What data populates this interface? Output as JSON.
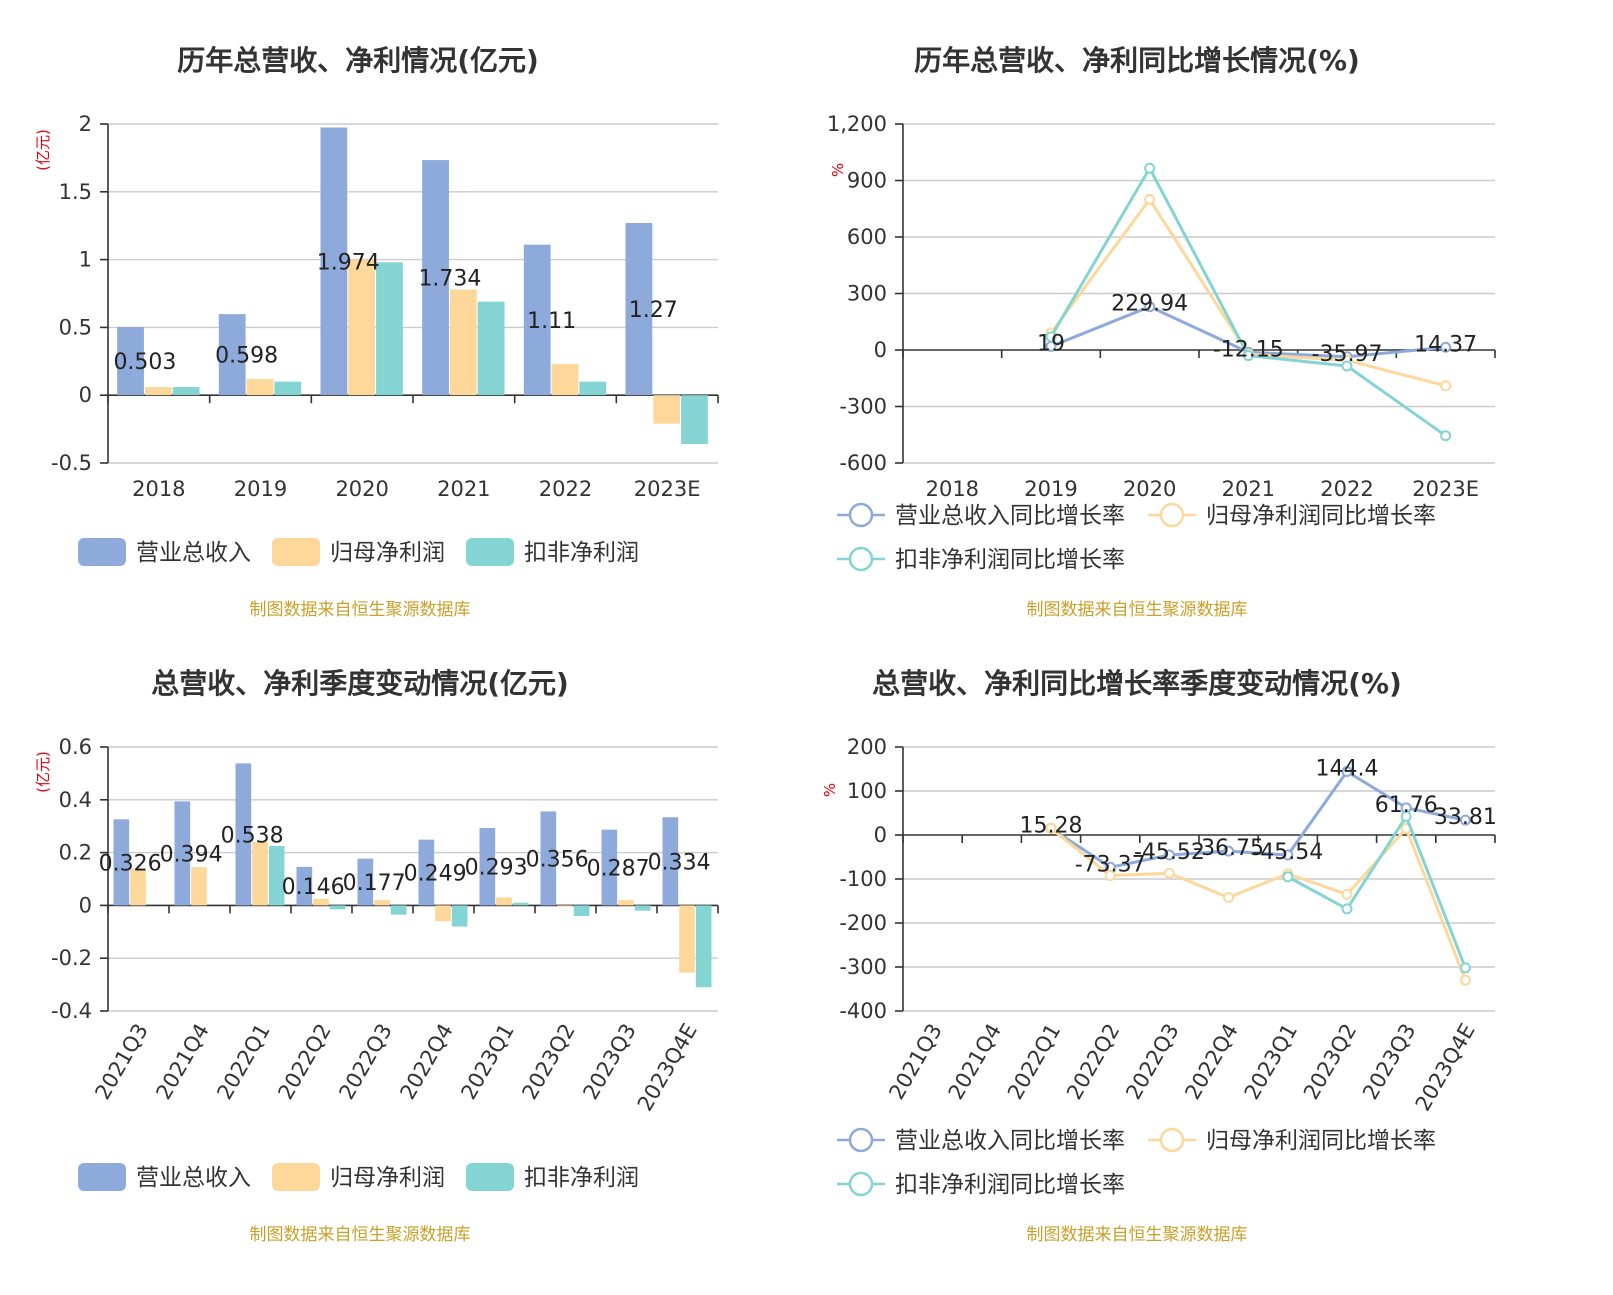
{
  "colors": {
    "revenue": "#8eaadb",
    "net_profit": "#fdd89a",
    "deducted_profit": "#84d4d4",
    "title": "#333333",
    "unit": "#e0000f",
    "source": "#c8a02a"
  },
  "source_note": "制图数据来自恒生聚源数据库",
  "chart_data": [
    {
      "id": "annual_amount",
      "type": "bar",
      "title": "历年总营收、净利情况(亿元)",
      "unit_label": "(亿元)",
      "categories": [
        "2018",
        "2019",
        "2020",
        "2021",
        "2022",
        "2023E"
      ],
      "ylim": [
        -0.5,
        2
      ],
      "yticks": [
        2,
        1.5,
        1,
        0.5,
        0,
        -0.5
      ],
      "ytick_labels": [
        "2",
        "1.5",
        "1",
        "0.5",
        "0",
        "-0.5"
      ],
      "grid": true,
      "legend_position": "bottom",
      "series": [
        {
          "name": "营业总收入",
          "color_key": "revenue",
          "values": [
            0.503,
            0.598,
            1.974,
            1.734,
            1.11,
            1.27
          ]
        },
        {
          "name": "归母净利润",
          "color_key": "net_profit",
          "values": [
            0.06,
            0.12,
            1.0,
            0.78,
            0.23,
            -0.21
          ]
        },
        {
          "name": "扣非净利润",
          "color_key": "deducted_profit",
          "values": [
            0.06,
            0.1,
            0.98,
            0.69,
            0.1,
            -0.36
          ]
        }
      ],
      "data_labels": [
        "0.503",
        "0.598",
        "1.974",
        "1.734",
        "1.11",
        "1.27"
      ]
    },
    {
      "id": "annual_growth",
      "type": "line",
      "title": "历年总营收、净利同比增长情况(%)",
      "unit_label": "%",
      "categories": [
        "2018",
        "2019",
        "2020",
        "2021",
        "2022",
        "2023E"
      ],
      "ylim": [
        -600,
        1200
      ],
      "yticks": [
        1200,
        900,
        600,
        300,
        0,
        -300,
        -600
      ],
      "ytick_labels": [
        "1,200",
        "900",
        "600",
        "300",
        "0",
        "-300",
        "-600"
      ],
      "grid": true,
      "legend_position": "bottom",
      "series": [
        {
          "name": "营业总收入同比增长率",
          "color_key": "revenue",
          "values": [
            null,
            19,
            229.94,
            -12.15,
            -35.97,
            14.37
          ]
        },
        {
          "name": "归母净利润同比增长率",
          "color_key": "net_profit",
          "values": [
            null,
            90,
            800,
            -22,
            -55,
            -190
          ]
        },
        {
          "name": "扣非净利润同比增长率",
          "color_key": "deducted_profit",
          "values": [
            null,
            70,
            965,
            -30,
            -85,
            -455
          ]
        }
      ],
      "data_labels": [
        null,
        "19",
        "229.94",
        "-12.15",
        "-35.97",
        "14.37"
      ]
    },
    {
      "id": "quarterly_amount",
      "type": "bar",
      "title": "总营收、净利季度变动情况(亿元)",
      "unit_label": "(亿元)",
      "categories": [
        "2021Q3",
        "2021Q4",
        "2022Q1",
        "2022Q2",
        "2022Q3",
        "2022Q4",
        "2023Q1",
        "2023Q2",
        "2023Q3",
        "2023Q4E"
      ],
      "ylim": [
        -0.4,
        0.6
      ],
      "yticks": [
        0.6,
        0.4,
        0.2,
        0,
        -0.2,
        -0.4
      ],
      "ytick_labels": [
        "0.6",
        "0.4",
        "0.2",
        "0",
        "-0.2",
        "-0.4"
      ],
      "grid": true,
      "legend_position": "bottom",
      "series": [
        {
          "name": "营业总收入",
          "color_key": "revenue",
          "values": [
            0.326,
            0.394,
            0.538,
            0.146,
            0.177,
            0.249,
            0.293,
            0.356,
            0.287,
            0.334
          ]
        },
        {
          "name": "归母净利润",
          "color_key": "net_profit",
          "values": [
            0.14,
            0.145,
            0.24,
            0.025,
            0.02,
            -0.06,
            0.03,
            -0.005,
            0.02,
            -0.255
          ]
        },
        {
          "name": "扣非净利润",
          "color_key": "deducted_profit",
          "values": [
            null,
            null,
            0.225,
            -0.015,
            -0.035,
            -0.08,
            0.01,
            -0.04,
            -0.02,
            -0.31
          ]
        }
      ],
      "data_labels": [
        "0.326",
        "0.394",
        "0.538",
        "0.146",
        "0.177",
        "0.249",
        "0.293",
        "0.356",
        "0.287",
        "0.334"
      ]
    },
    {
      "id": "quarterly_growth",
      "type": "line",
      "title": "总营收、净利同比增长率季度变动情况(%)",
      "unit_label": "%",
      "categories": [
        "2021Q3",
        "2021Q4",
        "2022Q1",
        "2022Q2",
        "2022Q3",
        "2022Q4",
        "2023Q1",
        "2023Q2",
        "2023Q3",
        "2023Q4E"
      ],
      "ylim": [
        -400,
        200
      ],
      "yticks": [
        200,
        100,
        0,
        -100,
        -200,
        -300,
        -400
      ],
      "ytick_labels": [
        "200",
        "100",
        "0",
        "-100",
        "-200",
        "-300",
        "-400"
      ],
      "grid": true,
      "legend_position": "bottom",
      "series": [
        {
          "name": "营业总收入同比增长率",
          "color_key": "revenue",
          "values": [
            null,
            null,
            15.28,
            -73.37,
            -45.52,
            -36.75,
            -45.54,
            144.4,
            61.76,
            33.81
          ]
        },
        {
          "name": "归母净利润同比增长率",
          "color_key": "net_profit",
          "values": [
            null,
            null,
            15,
            -92,
            -87,
            -142,
            -88,
            -135,
            15,
            -330
          ]
        },
        {
          "name": "扣非净利润同比增长率",
          "color_key": "deducted_profit",
          "values": [
            null,
            null,
            null,
            null,
            null,
            null,
            -95,
            -168,
            42,
            -302
          ]
        }
      ],
      "data_labels": [
        null,
        null,
        "15.28",
        "-73.37",
        "-45.52",
        "-36.75",
        "-45.54",
        "144.4",
        "61.76",
        "33.81"
      ]
    }
  ]
}
